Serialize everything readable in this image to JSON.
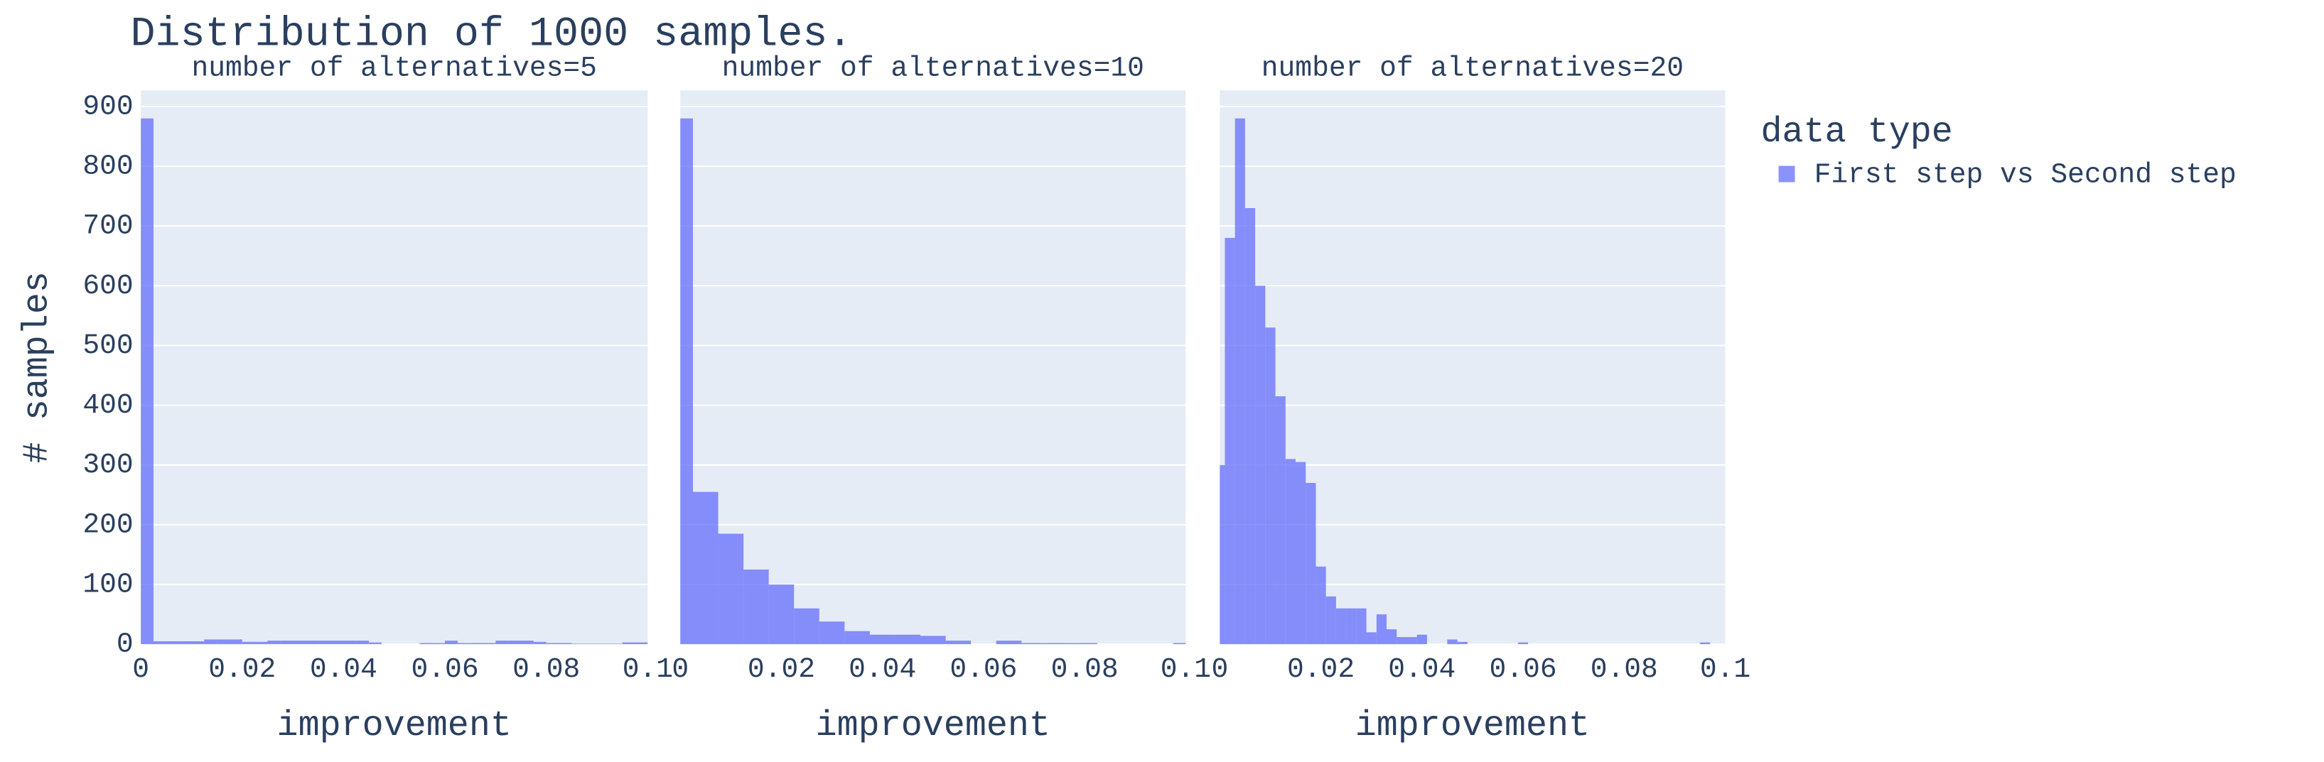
{
  "chart_data": {
    "type": "histogram",
    "title": "Distribution of 1000 samples.",
    "y_label": "# samples",
    "legend_title": "data type",
    "series": [
      {
        "name": "First step vs Second step",
        "color": "#636efa"
      }
    ],
    "ylim": [
      0,
      927
    ],
    "yticks": [
      0,
      100,
      200,
      300,
      400,
      500,
      600,
      700,
      800,
      900
    ],
    "xlim": [
      0,
      0.1
    ],
    "xticks": [
      0,
      0.02,
      0.04,
      0.06,
      0.08,
      0.1
    ],
    "grid": true,
    "facets": [
      {
        "title": "number of alternatives=5",
        "x_label": "improvement",
        "bins": [
          0,
          0.0025,
          0.005,
          0.0075,
          0.01,
          0.0125,
          0.015,
          0.0175,
          0.02,
          0.0225,
          0.025,
          0.0275,
          0.03,
          0.0325,
          0.035,
          0.0375,
          0.04,
          0.0425,
          0.045,
          0.0475,
          0.05,
          0.0525,
          0.055,
          0.0575,
          0.06,
          0.0625,
          0.065,
          0.0675,
          0.07,
          0.0725,
          0.075,
          0.0775,
          0.08,
          0.0825,
          0.085,
          0.0875,
          0.09,
          0.0925,
          0.095,
          0.0975,
          0.1
        ],
        "counts": [
          880,
          5,
          5,
          5,
          5,
          8,
          8,
          8,
          4,
          4,
          6,
          6,
          6,
          6,
          6,
          6,
          6,
          6,
          3,
          0,
          0,
          0,
          2,
          2,
          6,
          2,
          2,
          2,
          6,
          6,
          6,
          4,
          2,
          2,
          1,
          1,
          1,
          1,
          3,
          3
        ]
      },
      {
        "title": "number of alternatives=10",
        "x_label": "improvement",
        "bins": [
          -0.0025,
          0.0025,
          0.0075,
          0.0125,
          0.0175,
          0.0225,
          0.0275,
          0.0325,
          0.0375,
          0.0425,
          0.0475,
          0.0525,
          0.0575,
          0.0625,
          0.0675,
          0.0725,
          0.0775,
          0.0825,
          0.0875,
          0.0925,
          0.0975,
          0.1025
        ],
        "counts": [
          880,
          255,
          185,
          125,
          100,
          60,
          38,
          22,
          16,
          16,
          14,
          6,
          0,
          6,
          2,
          2,
          2,
          0,
          0,
          0,
          2
        ]
      },
      {
        "title": "number of alternatives=20",
        "x_label": "improvement",
        "bins": [
          -0.001,
          0.001,
          0.003,
          0.005,
          0.007,
          0.009,
          0.011,
          0.013,
          0.015,
          0.017,
          0.019,
          0.021,
          0.023,
          0.025,
          0.027,
          0.029,
          0.031,
          0.033,
          0.035,
          0.037,
          0.039,
          0.041,
          0.043,
          0.045,
          0.047,
          0.049,
          0.051,
          0.053,
          0.055,
          0.057,
          0.059,
          0.061,
          0.063,
          0.065,
          0.067,
          0.069,
          0.071,
          0.073,
          0.075,
          0.077,
          0.079,
          0.081,
          0.083,
          0.085,
          0.087,
          0.089,
          0.091,
          0.093,
          0.095,
          0.097,
          0.099,
          0.101
        ],
        "counts": [
          300,
          680,
          880,
          730,
          600,
          530,
          415,
          310,
          305,
          270,
          130,
          80,
          60,
          60,
          60,
          20,
          50,
          25,
          12,
          12,
          16,
          0,
          0,
          8,
          4,
          0,
          0,
          0,
          0,
          0,
          3,
          0,
          0,
          0,
          0,
          0,
          0,
          0,
          0,
          0,
          0,
          0,
          0,
          0,
          0,
          0,
          0,
          0,
          3,
          0,
          0
        ]
      }
    ]
  }
}
